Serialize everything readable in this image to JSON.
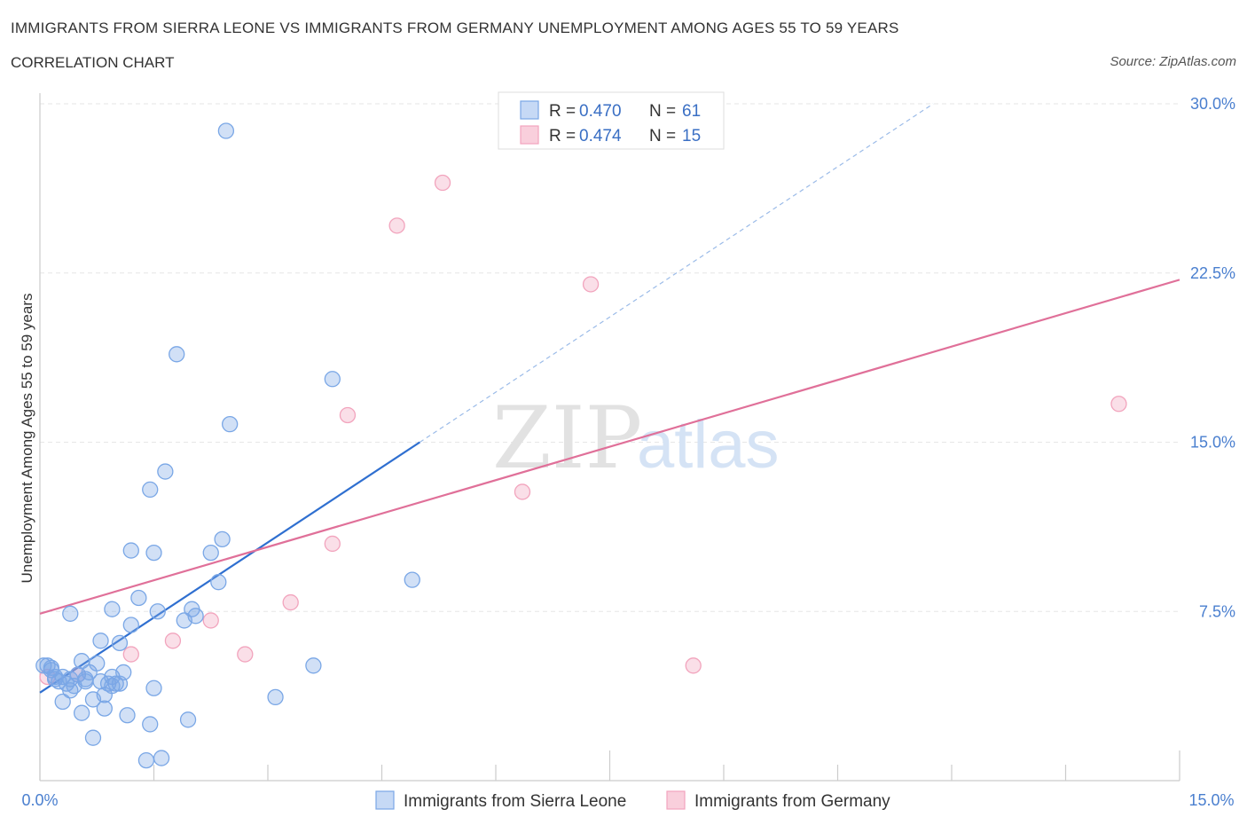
{
  "header": {
    "title": "IMMIGRANTS FROM SIERRA LEONE VS IMMIGRANTS FROM GERMANY UNEMPLOYMENT AMONG AGES 55 TO 59 YEARS",
    "subtitle": "CORRELATION CHART",
    "source": "Source: ZipAtlas.com"
  },
  "watermark": {
    "zip": "ZIP",
    "atlas": "atlas"
  },
  "legend": {
    "series1": {
      "r_label": "R =",
      "r_value": "0.470",
      "n_label": "N =",
      "n_value": "61"
    },
    "series2": {
      "r_label": "R =",
      "r_value": "0.474",
      "n_label": "N =",
      "n_value": "15"
    }
  },
  "chart_data": {
    "type": "scatter",
    "title": "IMMIGRANTS FROM SIERRA LEONE VS IMMIGRANTS FROM GERMANY UNEMPLOYMENT AMONG AGES 55 TO 59 YEARS",
    "ylabel": "Unemployment Among Ages 55 to 59 years",
    "xlim": [
      0,
      15
    ],
    "ylim": [
      0,
      30
    ],
    "x_tick_labels": [
      "0.0%",
      "15.0%"
    ],
    "y_tick_labels": [
      "7.5%",
      "15.0%",
      "22.5%",
      "30.0%"
    ],
    "y_ticks": [
      7.5,
      15,
      22.5,
      30
    ],
    "grid": true,
    "legend_position": "top-center",
    "colors": {
      "series1": "#7aa7e6",
      "series2": "#f2a4bd",
      "line1": "#2f6fd0",
      "line2": "#e07099"
    },
    "series": [
      {
        "name": "Immigrants from Sierra Leone",
        "trend": {
          "x0": 0.0,
          "y0": 3.9,
          "x1": 5.0,
          "y1": 15.0,
          "dashed_to_x": 15.0
        },
        "points": [
          [
            0.05,
            5.1
          ],
          [
            0.1,
            5.1
          ],
          [
            0.15,
            4.9
          ],
          [
            0.2,
            4.5
          ],
          [
            0.25,
            4.4
          ],
          [
            0.3,
            4.6
          ],
          [
            0.35,
            4.3
          ],
          [
            0.4,
            4.5
          ],
          [
            0.5,
            4.7
          ],
          [
            0.55,
            5.3
          ],
          [
            0.6,
            4.5
          ],
          [
            0.65,
            4.8
          ],
          [
            0.75,
            5.2
          ],
          [
            0.8,
            4.4
          ],
          [
            0.85,
            3.8
          ],
          [
            0.9,
            4.3
          ],
          [
            0.95,
            4.6
          ],
          [
            1.0,
            4.3
          ],
          [
            0.3,
            3.5
          ],
          [
            0.55,
            3.0
          ],
          [
            0.7,
            3.6
          ],
          [
            0.85,
            3.2
          ],
          [
            1.15,
            2.9
          ],
          [
            0.7,
            1.9
          ],
          [
            0.4,
            4.0
          ],
          [
            0.4,
            7.4
          ],
          [
            0.8,
            6.2
          ],
          [
            0.95,
            7.6
          ],
          [
            1.05,
            6.1
          ],
          [
            1.1,
            4.8
          ],
          [
            1.2,
            6.9
          ],
          [
            1.3,
            8.1
          ],
          [
            1.5,
            4.1
          ],
          [
            1.55,
            7.5
          ],
          [
            1.45,
            12.9
          ],
          [
            1.65,
            13.7
          ],
          [
            1.2,
            10.2
          ],
          [
            1.5,
            10.1
          ],
          [
            1.8,
            18.9
          ],
          [
            1.9,
            7.1
          ],
          [
            2.0,
            7.6
          ],
          [
            2.05,
            7.3
          ],
          [
            1.95,
            2.7
          ],
          [
            2.25,
            10.1
          ],
          [
            2.35,
            8.8
          ],
          [
            2.4,
            10.7
          ],
          [
            2.45,
            28.8
          ],
          [
            2.5,
            15.8
          ],
          [
            1.45,
            2.5
          ],
          [
            1.4,
            0.9
          ],
          [
            1.6,
            1.0
          ],
          [
            3.1,
            3.7
          ],
          [
            3.6,
            5.1
          ],
          [
            3.85,
            17.8
          ],
          [
            4.9,
            8.9
          ],
          [
            1.05,
            4.3
          ],
          [
            0.95,
            4.2
          ],
          [
            0.6,
            4.4
          ],
          [
            0.45,
            4.2
          ],
          [
            0.2,
            4.6
          ],
          [
            0.15,
            5.0
          ]
        ]
      },
      {
        "name": "Immigrants from Germany",
        "trend": {
          "x0": 0.0,
          "y0": 7.4,
          "x1": 15.0,
          "y1": 22.2
        },
        "points": [
          [
            0.1,
            4.6
          ],
          [
            0.5,
            4.7
          ],
          [
            1.2,
            5.6
          ],
          [
            1.75,
            6.2
          ],
          [
            2.25,
            7.1
          ],
          [
            2.7,
            5.6
          ],
          [
            3.3,
            7.9
          ],
          [
            3.85,
            10.5
          ],
          [
            4.05,
            16.2
          ],
          [
            4.7,
            24.6
          ],
          [
            5.3,
            26.5
          ],
          [
            6.35,
            12.8
          ],
          [
            7.25,
            22.0
          ],
          [
            8.6,
            5.1
          ],
          [
            14.2,
            16.7
          ]
        ]
      }
    ]
  }
}
